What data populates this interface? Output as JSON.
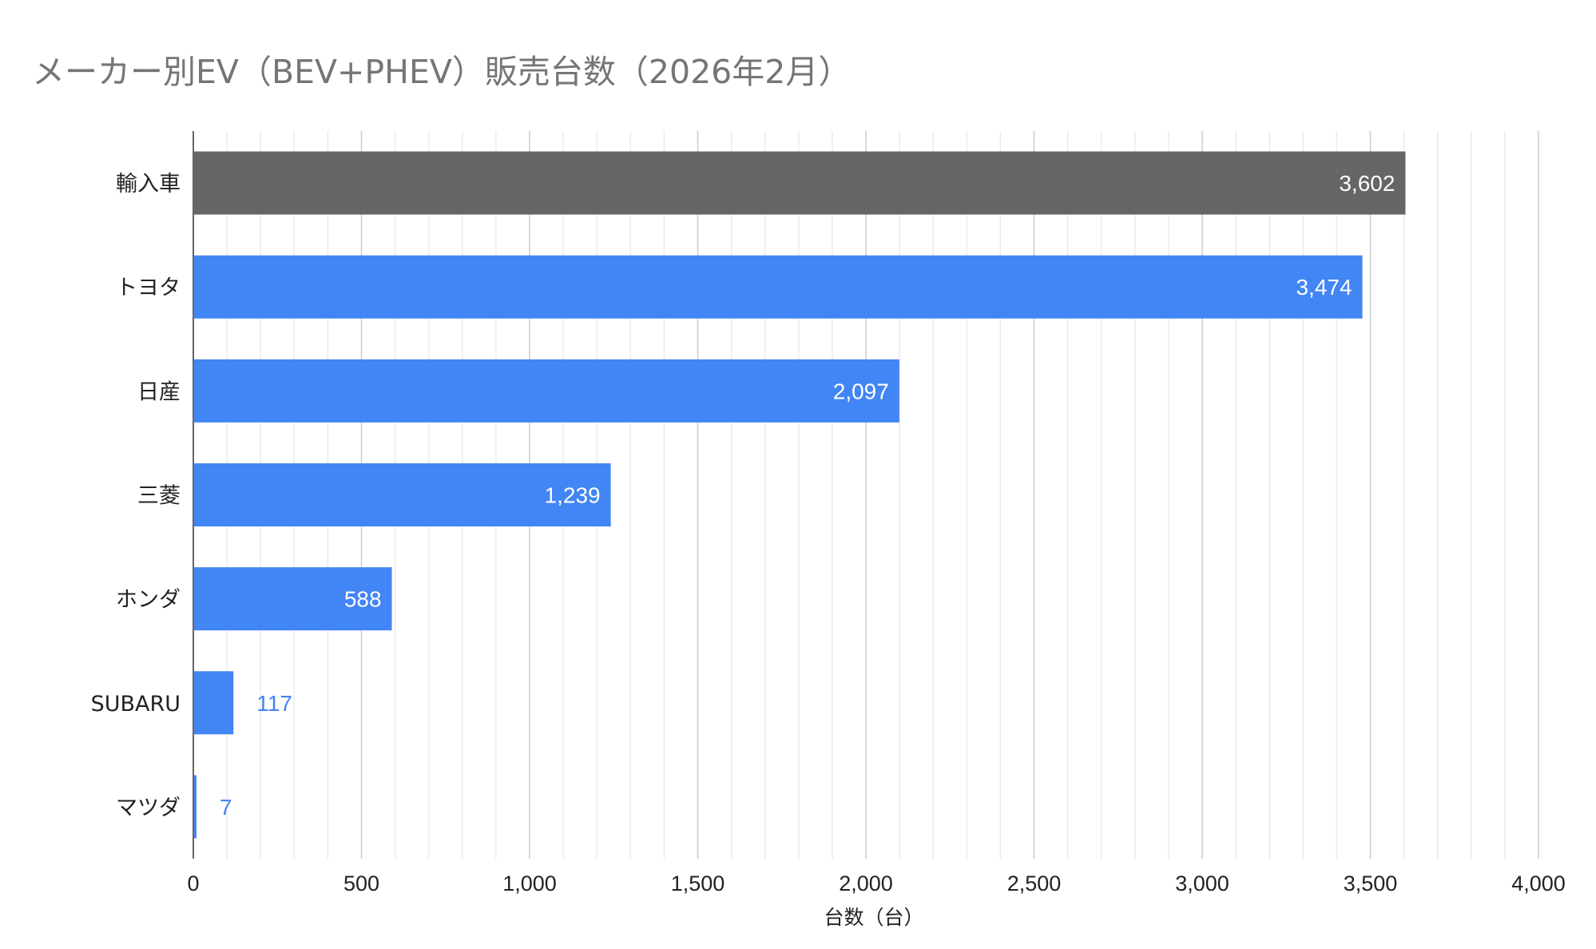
{
  "chart_data": {
    "type": "bar",
    "orientation": "horizontal",
    "title": "メーカー別EV（BEV+PHEV）販売台数（2026年2月）",
    "xlabel": "台数（台）",
    "ylabel": "",
    "categories": [
      "輸入車",
      "トヨタ",
      "日産",
      "三菱",
      "ホンダ",
      "SUBARU",
      "マツダ"
    ],
    "values": [
      3602,
      3474,
      2097,
      1239,
      588,
      117,
      7
    ],
    "value_labels": [
      "3,602",
      "3,474",
      "2,097",
      "1,239",
      "588",
      "117",
      "7"
    ],
    "bar_colors": [
      "#666666",
      "#4285f4",
      "#4285f4",
      "#4285f4",
      "#4285f4",
      "#4285f4",
      "#4285f4"
    ],
    "xlim": [
      0,
      4000
    ],
    "xticks": [
      0,
      500,
      1000,
      1500,
      2000,
      2500,
      3000,
      3500,
      4000
    ],
    "xtick_labels": [
      "0",
      "500",
      "1,000",
      "1,500",
      "2,000",
      "2,500",
      "3,000",
      "3,500",
      "4,000"
    ],
    "grid": true,
    "legend": "none"
  }
}
